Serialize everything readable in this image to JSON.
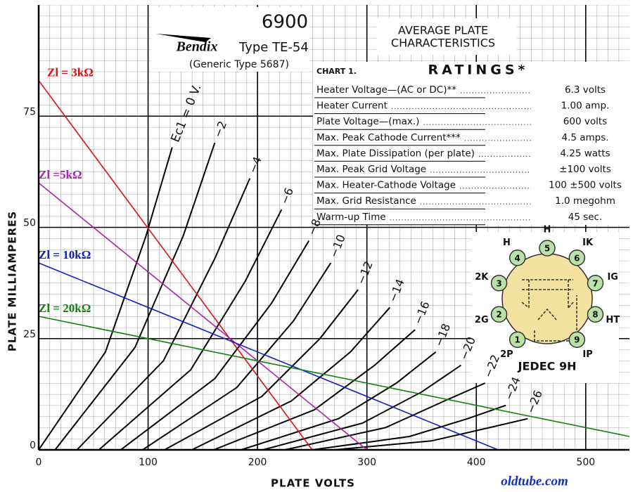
{
  "chart_data": {
    "type": "line",
    "xlabel": "PLATE VOLTS",
    "ylabel": "PLATE MILLIAMPERES",
    "xlim": [
      0,
      540
    ],
    "ylim": [
      0,
      100
    ],
    "xticks": [
      0,
      100,
      200,
      300,
      400,
      500
    ],
    "yticks": [
      0,
      25,
      50,
      75
    ],
    "grid": true,
    "series": [
      {
        "name": "Ec1 = 0 V.",
        "color": "#000000",
        "x": [
          0,
          61,
          98,
          122
        ],
        "y": [
          0,
          22,
          48,
          68
        ]
      },
      {
        "name": "−2",
        "color": "#000000",
        "x": [
          15,
          88,
          132,
          161
        ],
        "y": [
          0,
          23,
          48,
          69
        ]
      },
      {
        "name": "−4",
        "color": "#000000",
        "x": [
          35,
          114,
          161,
          193
        ],
        "y": [
          0,
          20,
          43,
          61
        ]
      },
      {
        "name": "−6",
        "color": "#000000",
        "x": [
          55,
          139,
          189,
          222
        ],
        "y": [
          0,
          18,
          38,
          54
        ]
      },
      {
        "name": "−8",
        "color": "#000000",
        "x": [
          75,
          161,
          213,
          247
        ],
        "y": [
          0,
          16,
          33,
          47
        ]
      },
      {
        "name": "−10",
        "color": "#000000",
        "x": [
          95,
          181,
          233,
          267
        ],
        "y": [
          0,
          14,
          29,
          42
        ]
      },
      {
        "name": "−12",
        "color": "#000000",
        "x": [
          115,
          204,
          257,
          292
        ],
        "y": [
          0,
          12,
          25,
          36
        ]
      },
      {
        "name": "−14",
        "color": "#000000",
        "x": [
          140,
          231,
          285,
          321
        ],
        "y": [
          0,
          11,
          22,
          32
        ]
      },
      {
        "name": "−16",
        "color": "#000000",
        "x": [
          160,
          252,
          307,
          344
        ],
        "y": [
          0,
          9,
          19,
          27
        ]
      },
      {
        "name": "−18",
        "color": "#000000",
        "x": [
          185,
          274,
          327,
          363
        ],
        "y": [
          0,
          7,
          15,
          22
        ]
      },
      {
        "name": "−20",
        "color": "#000000",
        "x": [
          205,
          296,
          350,
          386
        ],
        "y": [
          0,
          6,
          13,
          19
        ]
      },
      {
        "name": "−22",
        "color": "#000000",
        "x": [
          225,
          317,
          371,
          408
        ],
        "y": [
          0,
          5,
          11,
          15
        ]
      },
      {
        "name": "−24",
        "color": "#000000",
        "x": [
          250,
          339,
          392,
          427
        ],
        "y": [
          0,
          3,
          7,
          10
        ]
      },
      {
        "name": "−26",
        "color": "#000000",
        "x": [
          270,
          359,
          412,
          447
        ],
        "y": [
          0,
          2,
          5,
          7
        ]
      }
    ],
    "load_lines": [
      {
        "name": "Zl = 3kΩ",
        "color": "#e01010",
        "x": [
          0,
          250
        ],
        "y": [
          83,
          0
        ]
      },
      {
        "name": "Zl =5kΩ",
        "color": "#b020b0",
        "x": [
          0,
          300
        ],
        "y": [
          60,
          0
        ]
      },
      {
        "name": "Zl = 10kΩ",
        "color": "#1020c0",
        "x": [
          0,
          420
        ],
        "y": [
          42,
          0
        ]
      },
      {
        "name": "Zl = 20kΩ",
        "color": "#108010",
        "x": [
          0,
          540
        ],
        "y": [
          30,
          3
        ]
      }
    ]
  },
  "header": {
    "number": "6900",
    "brand": "Bendix",
    "type": "Type TE-54",
    "generic": "(Generic Type 5687)",
    "chart_title_1": "AVERAGE PLATE",
    "chart_title_2": "CHARACTERISTICS",
    "chart_no": "CHART 1.",
    "ratings_title": "RATINGS*"
  },
  "ratings": [
    [
      "Heater Voltage—(AC or DC)**",
      "6.3 volts"
    ],
    [
      "Heater Current",
      "1.00 amp."
    ],
    [
      "Plate Voltage—(max.)",
      "600 volts"
    ],
    [
      "Max. Peak Cathode Current***",
      "4.5 amps."
    ],
    [
      "Max. Plate Dissipation (per plate)",
      "4.25 watts"
    ],
    [
      "Max. Peak Grid Voltage",
      "±100 volts"
    ],
    [
      "Max. Heater-Cathode Voltage",
      "100 ±500 volts"
    ],
    [
      "Max. Grid Resistance",
      "1.0 megohm"
    ],
    [
      "Warm-up Time",
      "45 sec."
    ]
  ],
  "base": {
    "name": "JEDEC 9H",
    "pins": [
      {
        "number": "1",
        "label": "2P"
      },
      {
        "number": "2",
        "label": "2G"
      },
      {
        "number": "3",
        "label": "2K"
      },
      {
        "number": "4",
        "label": "H"
      },
      {
        "number": "5",
        "label": "H"
      },
      {
        "number": "6",
        "label": "IK"
      },
      {
        "number": "7",
        "label": "IG"
      },
      {
        "number": "8",
        "label": "HT"
      },
      {
        "number": "9",
        "label": "IP"
      }
    ]
  },
  "watermark": "oldtube.com"
}
